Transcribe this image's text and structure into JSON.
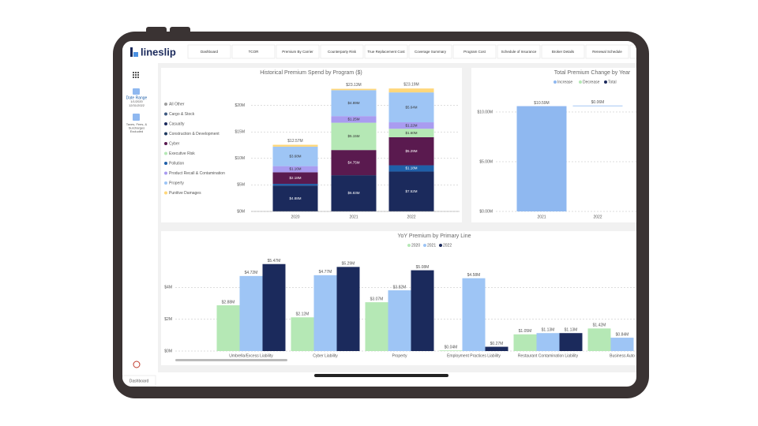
{
  "app": {
    "logo": "lineslip",
    "tabs": [
      "Dashboard",
      "TCOR",
      "Premium By Carrier",
      "Counterparty Risk",
      "True Replacement Cost",
      "Coverage Summary",
      "Program Cost",
      "Schedule of Insurance",
      "Broker Details",
      "Renewal Schedule",
      "Exe"
    ],
    "sidebar": {
      "date_label": "Date Range",
      "date_from": "1/1/2020",
      "date_to": "12/31/2022",
      "taxes_note": [
        "Taxes, Fees, &",
        "Surcharges",
        "Excluded"
      ]
    },
    "bottom_tab": "Dashboard"
  },
  "chart_data": [
    {
      "type": "stacked_bar",
      "title": "Historical Premium Spend by Program ($)",
      "categories": [
        "2020",
        "2021",
        "2022"
      ],
      "series": [
        {
          "name": "All Other",
          "color": "#9e9e9e",
          "values": [
            0,
            0,
            0
          ]
        },
        {
          "name": "Cargo & Stock",
          "color": "#3d5a80",
          "values": [
            0,
            0,
            0
          ]
        },
        {
          "name": "Casualty",
          "color": "#1b2a5c",
          "values": [
            4.88,
            6.83,
            7.52
          ],
          "value_labels": [
            "$4.88M",
            "$6.83M",
            "$7.52M"
          ]
        },
        {
          "name": "Construction & Development",
          "color": "#1e3a5f",
          "values": [
            0,
            0,
            0
          ]
        },
        {
          "name": "Cyber",
          "color": "#5a1a4f",
          "values": [
            2.18,
            4.75,
            5.29
          ],
          "value_labels": [
            "$2.18M",
            "$4.75M",
            "$5.29M"
          ]
        },
        {
          "name": "Executive Risk",
          "color": "#b5e8b5",
          "values": [
            0,
            5.15,
            1.6
          ],
          "value_labels": [
            null,
            "$5.15M",
            "$1.60M"
          ]
        },
        {
          "name": "Pollution",
          "color": "#1f5fa8",
          "values": [
            0.32,
            0,
            1.18
          ],
          "value_labels": [
            null,
            null,
            "$1.18M"
          ]
        },
        {
          "name": "Product Recall & Contamination",
          "color": "#a99cf0",
          "values": [
            1.16,
            1.25,
            1.22
          ],
          "value_labels": [
            "$1.16M",
            "$1.25M",
            "$1.22M"
          ]
        },
        {
          "name": "Property",
          "color": "#9ec5f5",
          "values": [
            3.68,
            4.89,
            5.64
          ],
          "value_labels": [
            "$3.68M",
            "$4.89M",
            "$5.64M"
          ]
        },
        {
          "name": "Punitive Damages",
          "color": "#ffd77a",
          "values": [
            0.35,
            0.26,
            0.74
          ]
        }
      ],
      "totals": {
        "values": [
          12.57,
          23.13,
          23.19
        ],
        "value_labels": [
          "$12.57M",
          "$23.13M",
          "$23.19M"
        ]
      },
      "ylim": [
        0,
        25
      ],
      "yticks": [
        {
          "value": 0,
          "label": "$0M"
        },
        {
          "value": 5,
          "label": "$5M"
        },
        {
          "value": 10,
          "label": "$10M"
        },
        {
          "value": 15,
          "label": "$15M"
        },
        {
          "value": 20,
          "label": "$20M"
        }
      ],
      "grid": true
    },
    {
      "type": "waterfall",
      "title": "Total Premium Change by Year",
      "legend": [
        {
          "name": "Increase",
          "color": "#8fb8f0"
        },
        {
          "name": "Decrease",
          "color": "#b5e8b5"
        },
        {
          "name": "Total",
          "color": "#1b2a5c"
        }
      ],
      "categories": [
        "2021",
        "2022"
      ],
      "values": [
        10.59,
        0.06
      ],
      "value_labels": [
        "$10.59M",
        "$0.06M"
      ],
      "ylim": [
        0,
        12.3
      ],
      "yticks": [
        {
          "value": 0,
          "label": "$0.00M"
        },
        {
          "value": 5,
          "label": "$5.00M"
        },
        {
          "value": 10,
          "label": "$10.00M"
        }
      ],
      "grid": true
    },
    {
      "type": "grouped_bar",
      "title": "YoY Premium by Primary Line",
      "categories": [
        "Umbrella/Excess Liability",
        "Cyber Liability",
        "Property",
        "Employment Practices Liability",
        "Restaurant Contamination Liability",
        "Business Auto"
      ],
      "series": [
        {
          "name": "2020",
          "color": "#b5e8b5",
          "values": [
            2.88,
            2.12,
            3.07,
            0.04,
            1.05,
            1.42
          ],
          "value_labels": [
            "$2.88M",
            "$2.12M",
            "$3.07M",
            "$0.04M",
            "$1.05M",
            "$1.42M"
          ]
        },
        {
          "name": "2021",
          "color": "#9ec5f5",
          "values": [
            4.72,
            4.77,
            3.82,
            4.58,
            1.13,
            0.84
          ],
          "value_labels": [
            "$4.72M",
            "$4.77M",
            "$3.82M",
            "$4.58M",
            "$1.13M",
            "$0.84M"
          ]
        },
        {
          "name": "2022",
          "color": "#1b2a5c",
          "values": [
            5.47,
            5.29,
            5.08,
            0.27,
            1.13,
            null
          ],
          "value_labels": [
            "$5.47M",
            "$5.29M",
            "$5.08M",
            "$0.27M",
            "$1.13M",
            null
          ]
        }
      ],
      "ylim": [
        0,
        6.3
      ],
      "yticks": [
        {
          "value": 0,
          "label": "$0M"
        },
        {
          "value": 2,
          "label": "$2M"
        },
        {
          "value": 4,
          "label": "$4M"
        }
      ],
      "grid": true
    }
  ]
}
